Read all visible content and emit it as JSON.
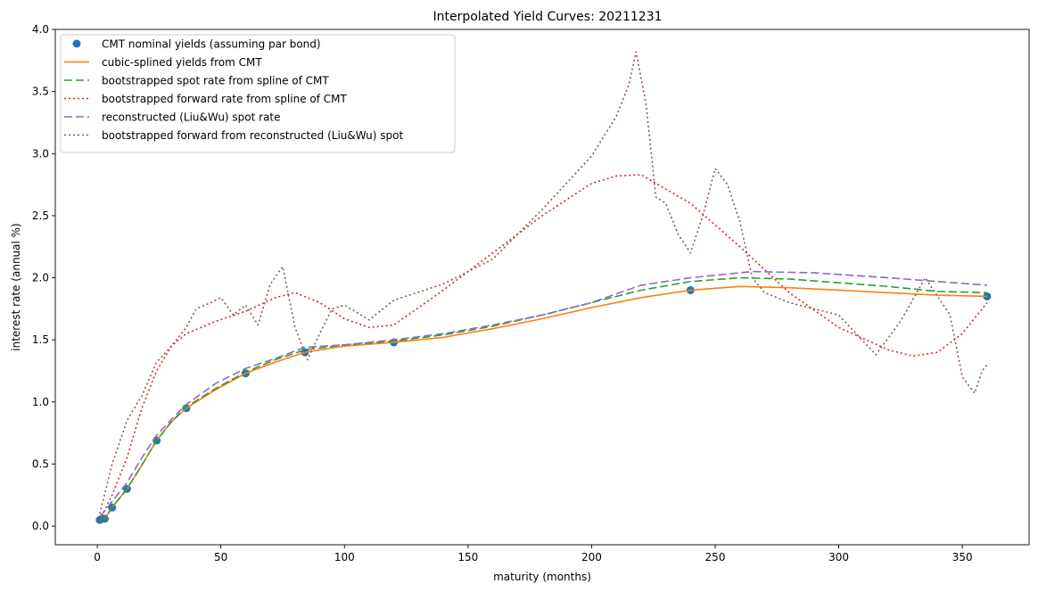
{
  "chart_data": {
    "type": "line",
    "title": "Interpolated Yield Curves: 20211231",
    "xlabel": "maturity (months)",
    "ylabel": "interest rate (annual %)",
    "xlim": [
      -17,
      377
    ],
    "ylim": [
      -0.15,
      4.0
    ],
    "xticks": [
      0,
      50,
      100,
      150,
      200,
      250,
      300,
      350
    ],
    "yticks": [
      0.0,
      0.5,
      1.0,
      1.5,
      2.0,
      2.5,
      3.0,
      3.5,
      4.0
    ],
    "grid": false,
    "legend_position": "upper-left",
    "series": [
      {
        "name": "CMT nominal yields (assuming par bond)",
        "kind": "points",
        "color": "#1f77b4",
        "x": [
          1,
          3,
          6,
          12,
          24,
          36,
          60,
          84,
          120,
          240,
          360
        ],
        "y": [
          0.05,
          0.06,
          0.15,
          0.3,
          0.69,
          0.95,
          1.23,
          1.4,
          1.48,
          1.9,
          1.85
        ]
      },
      {
        "name": "cubic-splined yields from CMT",
        "kind": "line",
        "color": "#ff7f0e",
        "dash": "",
        "x": [
          1,
          3,
          6,
          12,
          18,
          24,
          30,
          36,
          48,
          60,
          72,
          84,
          100,
          120,
          140,
          160,
          180,
          200,
          220,
          240,
          260,
          280,
          300,
          320,
          340,
          360
        ],
        "y": [
          0.05,
          0.06,
          0.15,
          0.3,
          0.49,
          0.69,
          0.84,
          0.95,
          1.1,
          1.23,
          1.32,
          1.4,
          1.45,
          1.48,
          1.52,
          1.59,
          1.67,
          1.76,
          1.84,
          1.9,
          1.93,
          1.92,
          1.9,
          1.88,
          1.86,
          1.85
        ]
      },
      {
        "name": "bootstrapped spot rate from spline of CMT",
        "kind": "line",
        "color": "#2ca02c",
        "dash": "9,4",
        "x": [
          1,
          3,
          6,
          12,
          18,
          24,
          30,
          36,
          48,
          60,
          72,
          84,
          100,
          120,
          140,
          160,
          180,
          200,
          220,
          240,
          260,
          280,
          300,
          320,
          340,
          360
        ],
        "y": [
          0.05,
          0.06,
          0.15,
          0.3,
          0.49,
          0.69,
          0.84,
          0.96,
          1.11,
          1.24,
          1.34,
          1.42,
          1.46,
          1.49,
          1.54,
          1.61,
          1.7,
          1.8,
          1.9,
          1.97,
          2.0,
          1.99,
          1.96,
          1.93,
          1.89,
          1.88
        ]
      },
      {
        "name": "bootstrapped forward rate from spline of CMT",
        "kind": "line",
        "color": "#d62728",
        "dash": "2,3",
        "x": [
          1,
          6,
          12,
          18,
          24,
          30,
          36,
          48,
          60,
          72,
          80,
          90,
          100,
          110,
          120,
          140,
          160,
          180,
          200,
          210,
          220,
          240,
          260,
          280,
          300,
          320,
          330,
          340,
          350,
          360
        ],
        "y": [
          0.05,
          0.25,
          0.55,
          0.95,
          1.25,
          1.45,
          1.55,
          1.65,
          1.73,
          1.84,
          1.88,
          1.8,
          1.67,
          1.6,
          1.62,
          1.9,
          2.2,
          2.5,
          2.76,
          2.82,
          2.83,
          2.6,
          2.25,
          1.88,
          1.6,
          1.42,
          1.37,
          1.4,
          1.55,
          1.8
        ]
      },
      {
        "name": "reconstructed (Liu&Wu) spot rate",
        "kind": "line",
        "color": "#9467bd",
        "dash": "9,4",
        "x": [
          1,
          3,
          6,
          12,
          18,
          24,
          30,
          36,
          48,
          60,
          72,
          84,
          100,
          120,
          140,
          160,
          180,
          200,
          220,
          240,
          265,
          290,
          320,
          340,
          360
        ],
        "y": [
          0.08,
          0.12,
          0.2,
          0.35,
          0.55,
          0.73,
          0.86,
          0.98,
          1.15,
          1.27,
          1.35,
          1.44,
          1.46,
          1.5,
          1.55,
          1.62,
          1.7,
          1.8,
          1.94,
          2.0,
          2.05,
          2.04,
          2.0,
          1.97,
          1.94
        ]
      },
      {
        "name": "bootstrapped forward from reconstructed (Liu&Wu) spot",
        "kind": "line",
        "color": "#8c564b",
        "dash": "2,3",
        "x": [
          1,
          6,
          12,
          18,
          24,
          30,
          36,
          40,
          46,
          50,
          55,
          60,
          65,
          70,
          75,
          80,
          85,
          90,
          95,
          100,
          110,
          120,
          140,
          160,
          180,
          200,
          210,
          215,
          218,
          222,
          226,
          230,
          235,
          240,
          245,
          250,
          255,
          260,
          265,
          270,
          280,
          300,
          315,
          325,
          335,
          345,
          350,
          355,
          358,
          360
        ],
        "y": [
          0.1,
          0.5,
          0.85,
          1.05,
          1.32,
          1.45,
          1.6,
          1.75,
          1.8,
          1.84,
          1.7,
          1.78,
          1.62,
          1.95,
          2.09,
          1.6,
          1.34,
          1.55,
          1.75,
          1.78,
          1.66,
          1.82,
          1.95,
          2.15,
          2.55,
          2.98,
          3.3,
          3.55,
          3.82,
          3.4,
          2.65,
          2.6,
          2.35,
          2.2,
          2.5,
          2.88,
          2.75,
          2.45,
          2.0,
          1.88,
          1.8,
          1.7,
          1.38,
          1.65,
          2.0,
          1.7,
          1.2,
          1.07,
          1.25,
          1.3
        ]
      }
    ]
  }
}
